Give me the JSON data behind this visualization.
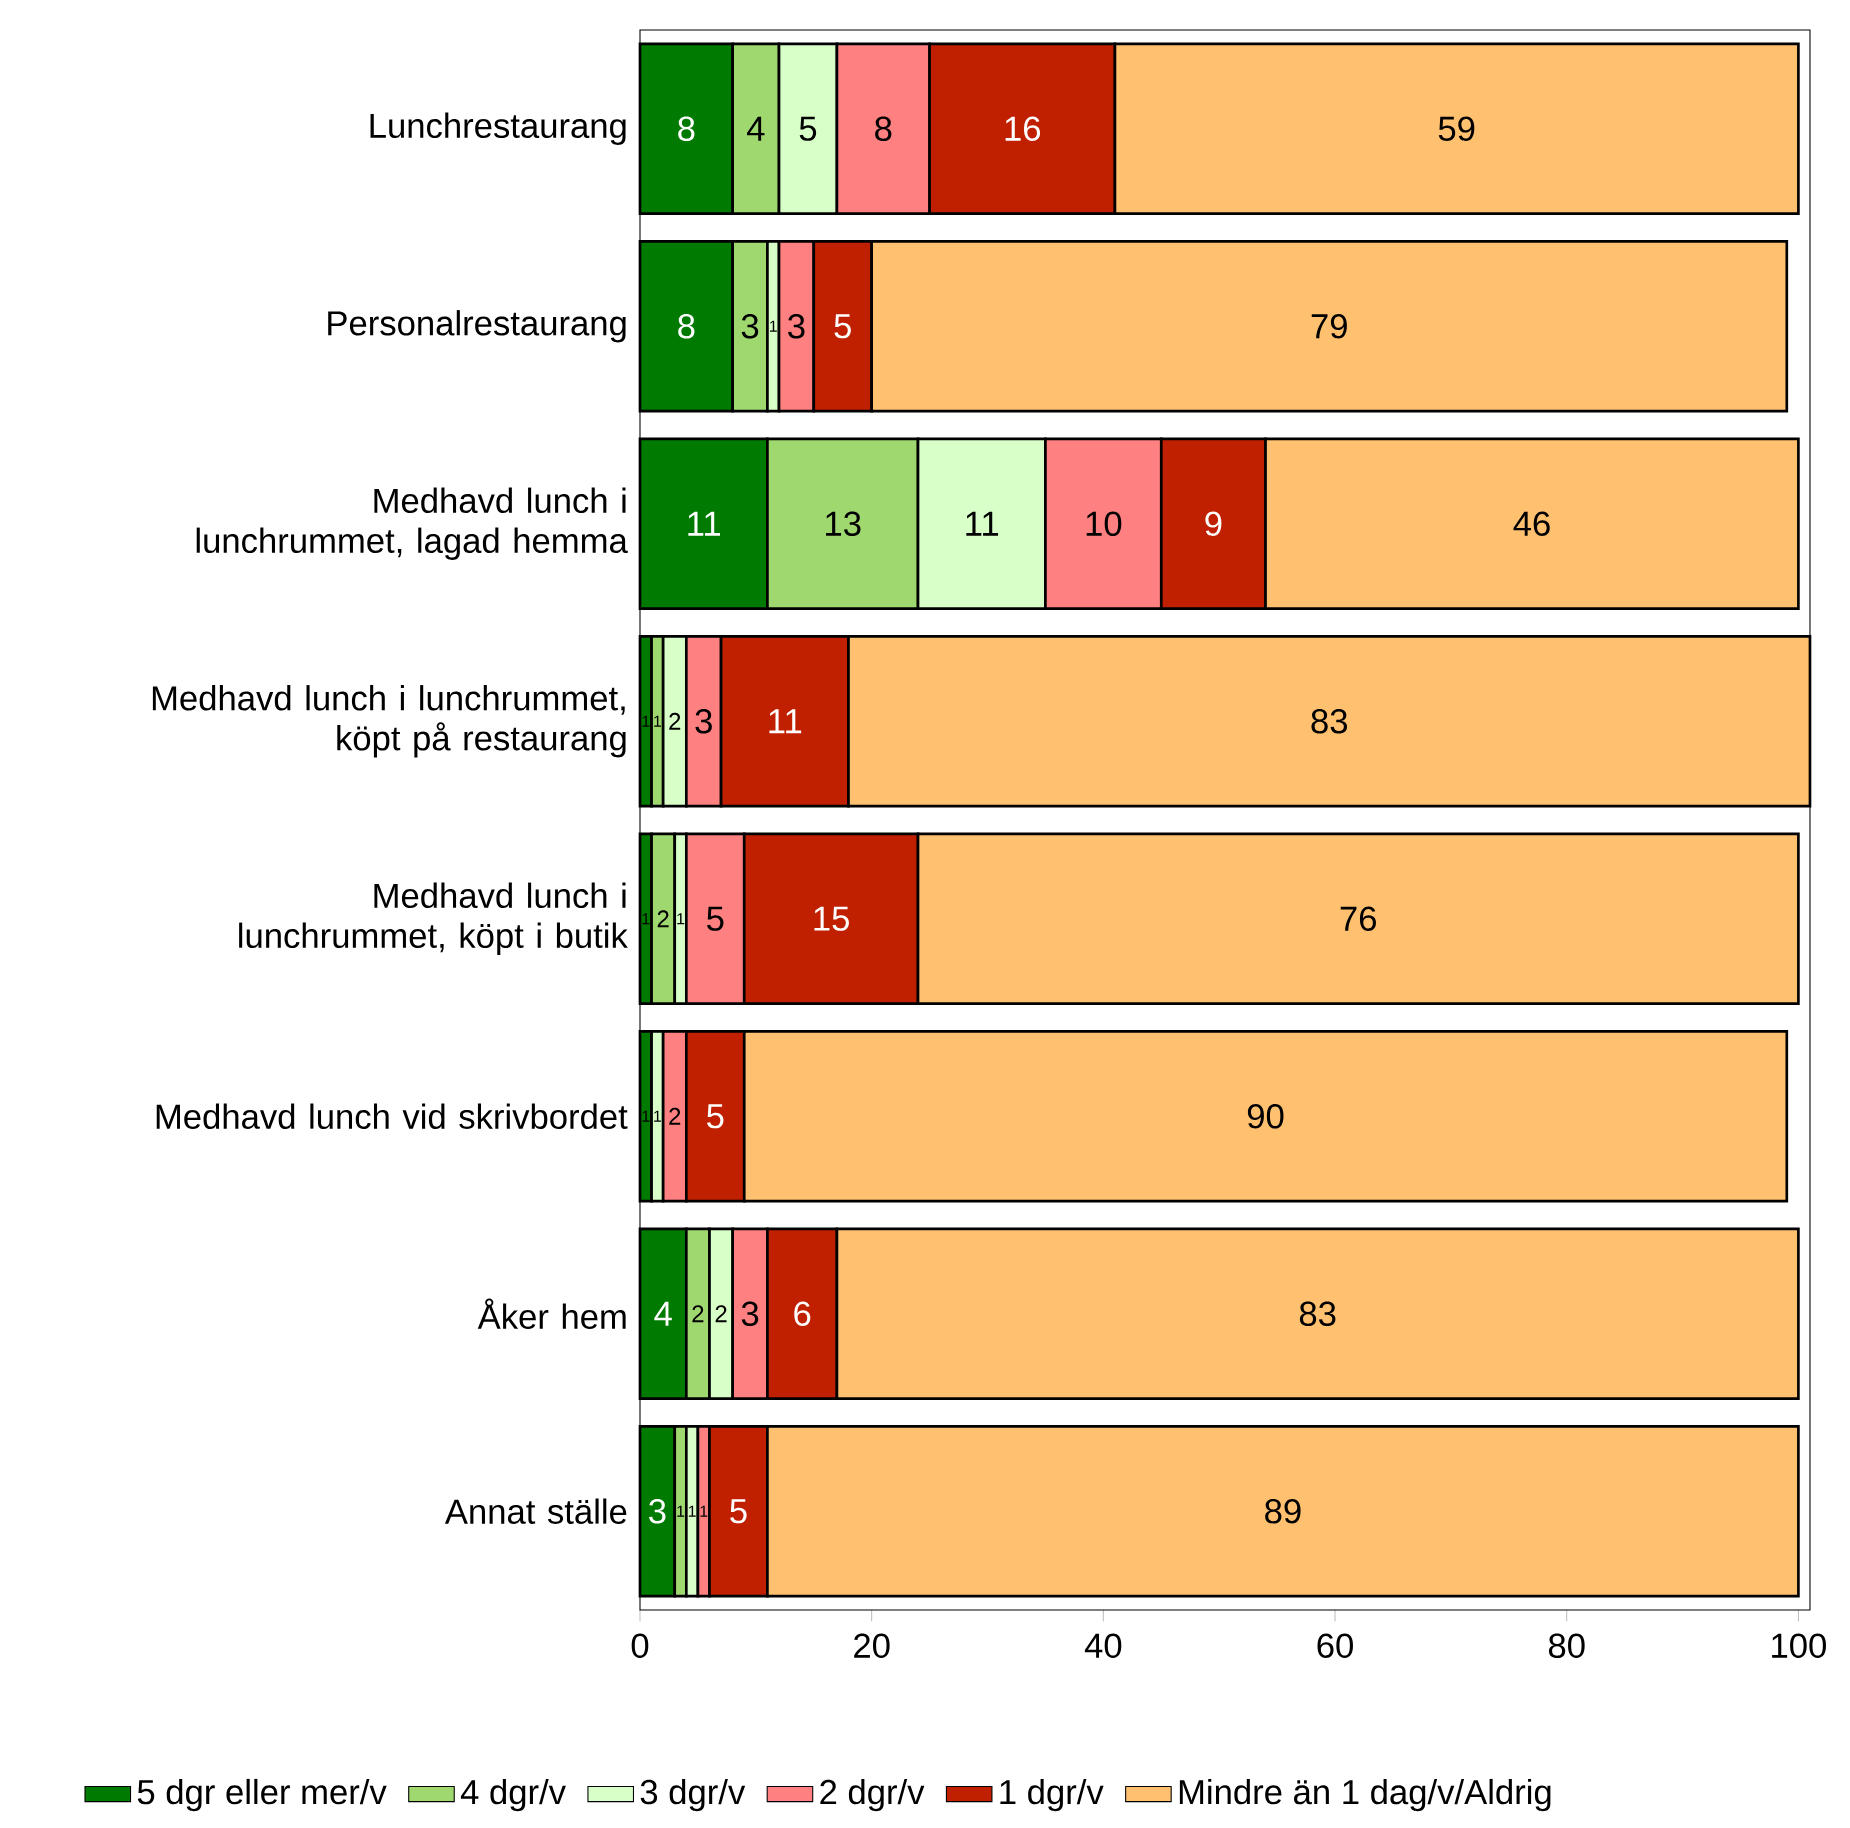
{
  "chart_data": {
    "type": "bar",
    "orientation": "horizontal",
    "stacked": true,
    "data_labels": true,
    "legend": "bottom",
    "grid": false,
    "categories": [
      "Lunchrestaurang",
      "Personalrestaurang",
      "Medhavd lunch i lunchrummet, lagad hemma",
      "Medhavd lunch i lunchrummet, köpt på restaurang",
      "Medhavd lunch i lunchrummet, köpt i butik",
      "Medhavd lunch vid skrivbordet",
      "Åker hem",
      "Annat ställe"
    ],
    "series": [
      {
        "name": "5 dgr eller mer/v",
        "color": "#007a00",
        "values": [
          8,
          8,
          11,
          1,
          1,
          1,
          4,
          3
        ]
      },
      {
        "name": "4 dgr/v",
        "color": "#a0d870",
        "values": [
          4,
          3,
          13,
          1,
          2,
          null,
          2,
          1
        ]
      },
      {
        "name": "3 dgr/v",
        "color": "#d8ffc8",
        "values": [
          5,
          1,
          11,
          2,
          1,
          1,
          2,
          1
        ]
      },
      {
        "name": "2 dgr/v",
        "color": "#ff8080",
        "values": [
          8,
          3,
          10,
          3,
          5,
          2,
          3,
          1
        ]
      },
      {
        "name": "1 dgr/v",
        "color": "#c02000",
        "values": [
          16,
          5,
          9,
          11,
          15,
          5,
          6,
          5
        ]
      },
      {
        "name": "Mindre än 1 dag/v/Aldrig",
        "color": "#ffc070",
        "values": [
          59,
          79,
          46,
          83,
          76,
          90,
          83,
          89
        ]
      }
    ],
    "xlim": [
      0,
      101
    ],
    "xticks": [
      0,
      20,
      40,
      60,
      80,
      100
    ]
  }
}
